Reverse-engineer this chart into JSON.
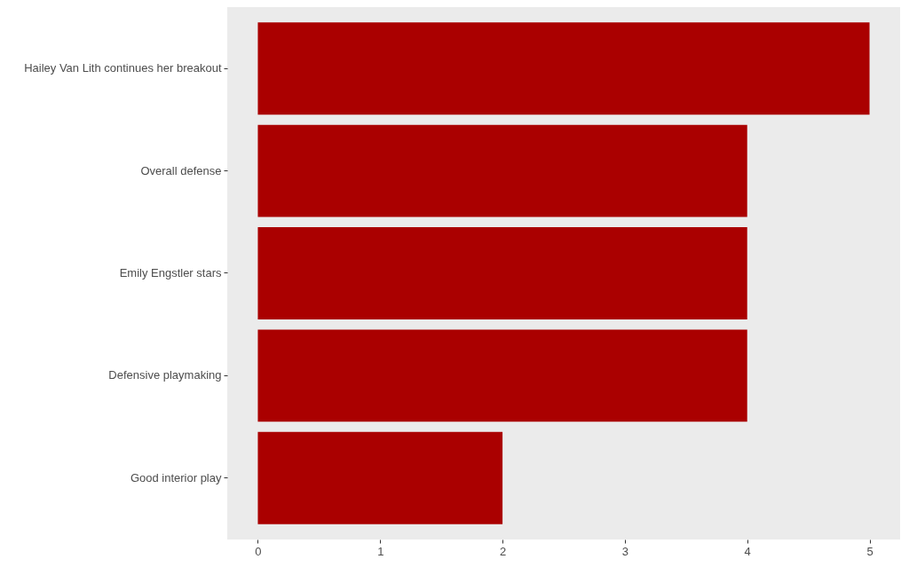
{
  "chart_data": {
    "type": "bar",
    "orientation": "horizontal",
    "categories": [
      "Hailey Van Lith continues her breakout",
      "Overall defense",
      "Emily Engstler stars",
      "Defensive playmaking",
      "Good interior play"
    ],
    "values": [
      5,
      4,
      4,
      4,
      2
    ],
    "color": "#aa0000",
    "xlim": [
      -0.25,
      5.25
    ],
    "xticks": [
      0,
      1,
      2,
      3,
      4,
      5
    ],
    "grid": false
  }
}
